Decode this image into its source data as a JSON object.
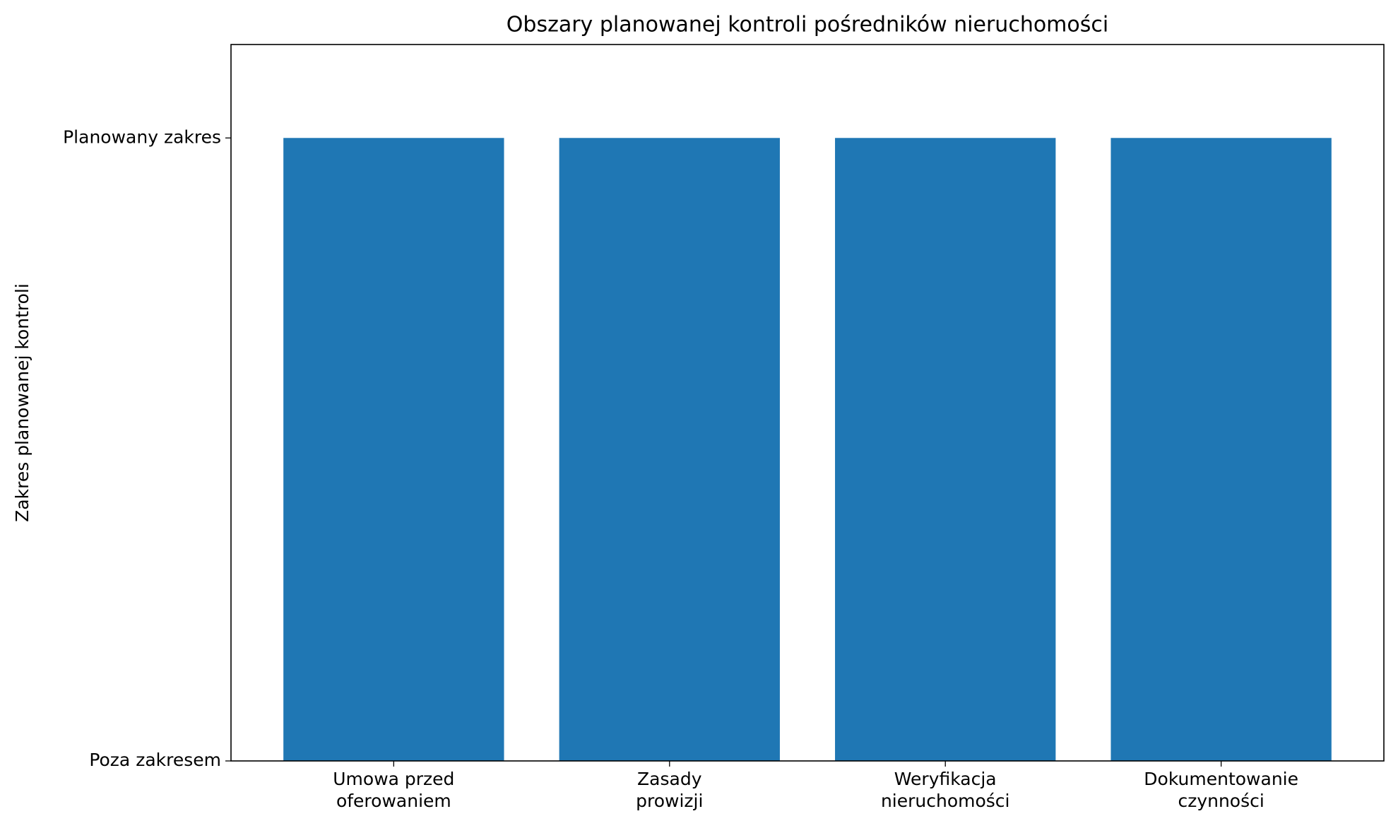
{
  "chart_data": {
    "type": "bar",
    "title": "Obszary planowanej kontroli pośredników nieruchomości",
    "y_label": "Zakres planowanej kontroli",
    "categories": [
      "Umowa przed\noferowaniem",
      "Zasady\nprowizji",
      "Weryfikacja\nnieruchomości",
      "Dokumentowanie\nczynności"
    ],
    "values": [
      1,
      1,
      1,
      1
    ],
    "color": "#1f77b4",
    "ylim": [
      0,
      1.15
    ],
    "yticks": [
      {
        "value": 0,
        "label": "Poza zakresem"
      },
      {
        "value": 1,
        "label": "Planowany zakres"
      }
    ],
    "grid": false
  }
}
